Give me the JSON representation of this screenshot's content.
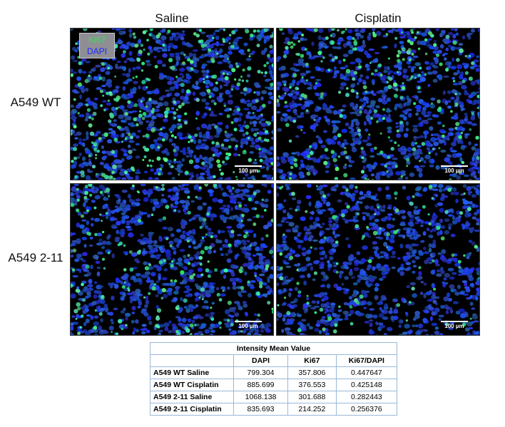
{
  "figure": {
    "columns": [
      "Saline",
      "Cisplatin"
    ],
    "rows": [
      "A549 WT",
      "A549 2-11"
    ],
    "legend": {
      "ki67": "Ki67",
      "dapi": "DAPI"
    },
    "scale_bar_label": "100 µm",
    "panels": [
      {
        "row": 0,
        "col": 0,
        "green_density": 0.75
      },
      {
        "row": 0,
        "col": 1,
        "green_density": 0.55
      },
      {
        "row": 1,
        "col": 0,
        "green_density": 0.45
      },
      {
        "row": 1,
        "col": 1,
        "green_density": 0.22
      }
    ],
    "colors": {
      "background": "#000000",
      "dapi": "#1f3fd6",
      "ki67": "#39e06a"
    }
  },
  "table": {
    "title": "Intensity Mean Value",
    "headers": [
      "",
      "DAPI",
      "Ki67",
      "Ki67/DAPI"
    ],
    "rows": [
      {
        "label": "A549 WT Saline",
        "dapi": "799.304",
        "ki67": "357.806",
        "ratio": "0.447647"
      },
      {
        "label": "A549 WT Cisplatin",
        "dapi": "885.699",
        "ki67": "376.553",
        "ratio": "0.425148"
      },
      {
        "label": "A549 2-11 Saline",
        "dapi": "1068.138",
        "ki67": "301.688",
        "ratio": "0.282443"
      },
      {
        "label": "A549 2-11 Cisplatin",
        "dapi": "835.693",
        "ki67": "214.252",
        "ratio": "0.256376"
      }
    ]
  }
}
